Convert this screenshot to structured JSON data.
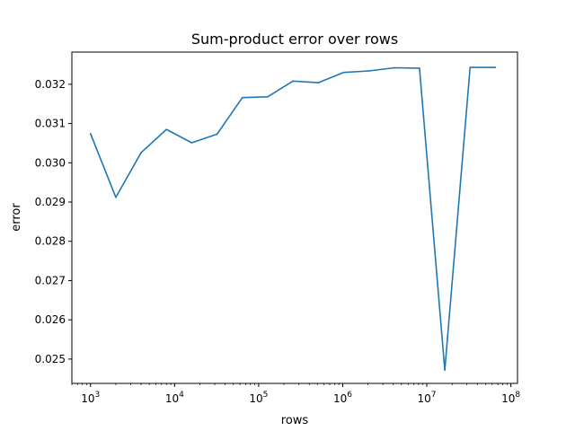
{
  "chart_data": {
    "type": "line",
    "title": "Sum-product error over rows",
    "xlabel": "rows",
    "ylabel": "error",
    "xscale": "log",
    "xlim": [
      600,
      120000000
    ],
    "ylim": [
      0.02438,
      0.03282
    ],
    "grid": false,
    "legend": "none",
    "x_ticks": [
      {
        "base": "10",
        "exp": "3",
        "value": 1000
      },
      {
        "base": "10",
        "exp": "4",
        "value": 10000
      },
      {
        "base": "10",
        "exp": "5",
        "value": 100000
      },
      {
        "base": "10",
        "exp": "6",
        "value": 1000000
      },
      {
        "base": "10",
        "exp": "7",
        "value": 10000000
      },
      {
        "base": "10",
        "exp": "8",
        "value": 100000000
      }
    ],
    "y_ticks": [
      {
        "label": "0.025",
        "value": 0.025
      },
      {
        "label": "0.026",
        "value": 0.026
      },
      {
        "label": "0.027",
        "value": 0.027
      },
      {
        "label": "0.028",
        "value": 0.028
      },
      {
        "label": "0.029",
        "value": 0.029
      },
      {
        "label": "0.030",
        "value": 0.03
      },
      {
        "label": "0.031",
        "value": 0.031
      },
      {
        "label": "0.032",
        "value": 0.032
      }
    ],
    "series": [
      {
        "color": "#1f77b4",
        "x": [
          1000,
          2000,
          4000,
          8000,
          16000,
          32000,
          64000,
          128000,
          256000,
          512000,
          1024000,
          2048000,
          4096000,
          8192000,
          16384000,
          32768000,
          65536000
        ],
        "y": [
          0.03074,
          0.02912,
          0.03026,
          0.03085,
          0.03051,
          0.03073,
          0.03166,
          0.03168,
          0.03208,
          0.03204,
          0.0323,
          0.03234,
          0.03242,
          0.03241,
          0.02472,
          0.03243,
          0.03243
        ]
      }
    ]
  }
}
